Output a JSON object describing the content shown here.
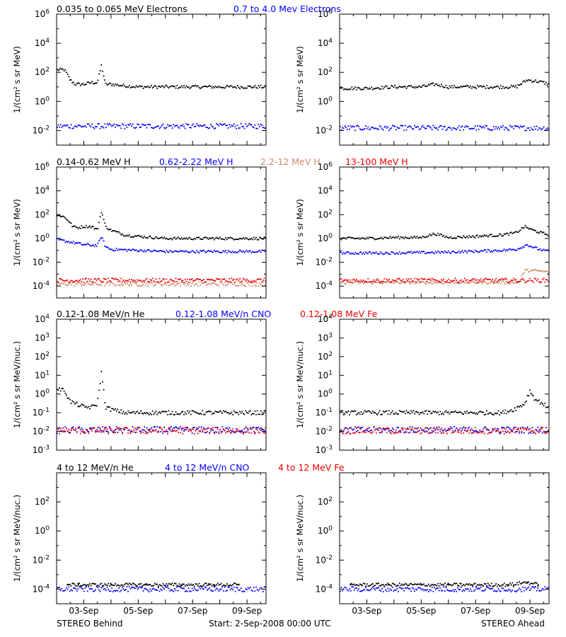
{
  "colors": {
    "black": "#000000",
    "blue": "#0000ff",
    "tan": "#d08a6c",
    "red": "#ee0000"
  },
  "headers": [
    [
      {
        "text": "0.035 to 0.065 MeV Electrons",
        "color": "black"
      },
      {
        "text": "0.7 to 4.0 Mev Electrons",
        "color": "blue"
      }
    ],
    [
      {
        "text": "0.14-0.62 MeV H",
        "color": "black"
      },
      {
        "text": "0.62-2.22 MeV H",
        "color": "blue"
      },
      {
        "text": "2.2-12 MeV H",
        "color": "tan"
      },
      {
        "text": "13-100 MeV H",
        "color": "red"
      }
    ],
    [
      {
        "text": "0.12-1.08 MeV/n He",
        "color": "black"
      },
      {
        "text": "0.12-1.08 MeV/n CNO",
        "color": "blue"
      },
      {
        "text": "0.12-1.08 MeV Fe",
        "color": "red"
      }
    ],
    [
      {
        "text": "4 to 12 MeV/n He",
        "color": "black"
      },
      {
        "text": "4 to 12 MeV/n CNO",
        "color": "blue"
      },
      {
        "text": "4 to 12 MeV Fe",
        "color": "red"
      }
    ]
  ],
  "footer": {
    "left": "STEREO Behind",
    "center": "Start:  2-Sep-2008 00:00 UTC",
    "right": "STEREO Ahead"
  },
  "chart_data": [
    {
      "type": "scatter",
      "panel": "row1-left",
      "spacecraft": "STEREO Behind",
      "ylabel": "1/(cm² s sr MeV)",
      "y_scale": "log",
      "ylim": [
        0.001,
        1000000
      ],
      "ylim_exp": [
        -3,
        6
      ],
      "yticks_exp": [
        -2,
        0,
        2,
        4,
        6
      ],
      "xlim": [
        0,
        7.7
      ],
      "xticks": [
        1,
        3,
        5,
        7
      ],
      "xticklabels": [
        "03-Sep",
        "05-Sep",
        "07-Sep",
        "09-Sep"
      ],
      "series": [
        {
          "name": "0.035 to 0.065 MeV Electrons",
          "color": "black",
          "x": [
            0,
            0.3,
            0.5,
            0.7,
            1.0,
            1.3,
            1.5,
            1.65,
            1.8,
            2.0,
            2.5,
            3.0,
            4.0,
            5.0,
            6.0,
            7.0,
            7.7
          ],
          "y": [
            150,
            150,
            30,
            15,
            15,
            20,
            20,
            300,
            15,
            15,
            12,
            10,
            10,
            10,
            10,
            10,
            10
          ]
        },
        {
          "name": "0.7 to 4.0 Mev Electrons",
          "color": "blue",
          "x": [
            0,
            7.7
          ],
          "y": [
            0.02,
            0.02
          ]
        }
      ]
    },
    {
      "type": "scatter",
      "panel": "row1-right",
      "spacecraft": "STEREO Ahead",
      "ylabel": "1/(cm² s sr MeV)",
      "y_scale": "log",
      "ylim": [
        0.001,
        1000000
      ],
      "ylim_exp": [
        -3,
        6
      ],
      "yticks_exp": [
        -2,
        0,
        2,
        4,
        6
      ],
      "xlim": [
        0,
        7.7
      ],
      "xticks": [
        1,
        3,
        5,
        7
      ],
      "xticklabels": [
        "03-Sep",
        "05-Sep",
        "07-Sep",
        "09-Sep"
      ],
      "series": [
        {
          "name": "0.035 to 0.065 MeV Electrons",
          "color": "black",
          "x": [
            0,
            1.0,
            2.0,
            3.0,
            3.5,
            4.0,
            5.0,
            6.0,
            6.5,
            6.9,
            7.2,
            7.5,
            7.7
          ],
          "y": [
            8,
            8,
            10,
            10,
            15,
            10,
            10,
            10,
            10,
            30,
            25,
            20,
            15
          ]
        },
        {
          "name": "0.7 to 4.0 Mev Electrons",
          "color": "blue",
          "x": [
            0,
            7.7
          ],
          "y": [
            0.015,
            0.015
          ]
        }
      ]
    },
    {
      "type": "scatter",
      "panel": "row2-left",
      "spacecraft": "STEREO Behind",
      "ylabel": "1/(cm² s sr MeV)",
      "y_scale": "log",
      "ylim": [
        1e-05,
        1000000
      ],
      "ylim_exp": [
        -5,
        6
      ],
      "yticks_exp": [
        -4,
        -2,
        0,
        2,
        4,
        6
      ],
      "xlim": [
        0,
        7.7
      ],
      "xticks": [
        1,
        3,
        5,
        7
      ],
      "xticklabels": [
        "03-Sep",
        "05-Sep",
        "07-Sep",
        "09-Sep"
      ],
      "series": [
        {
          "name": "0.14-0.62 MeV H",
          "color": "black",
          "x": [
            0,
            0.2,
            0.4,
            0.6,
            0.8,
            1.0,
            1.3,
            1.5,
            1.65,
            1.8,
            2.0,
            2.5,
            3.0,
            4.0,
            5.0,
            6.0,
            7.0,
            7.7
          ],
          "y": [
            80,
            80,
            40,
            10,
            8,
            10,
            10,
            5,
            200,
            10,
            5,
            2,
            1.5,
            1,
            1,
            1,
            1,
            1
          ]
        },
        {
          "name": "0.62-2.22 MeV H",
          "color": "blue",
          "x": [
            0,
            0.5,
            1.0,
            1.5,
            1.65,
            1.8,
            2.0,
            3.0,
            4.0,
            5.0,
            6.0,
            7.0,
            7.7
          ],
          "y": [
            0.8,
            0.5,
            0.3,
            0.25,
            1.5,
            0.2,
            0.12,
            0.1,
            0.08,
            0.08,
            0.08,
            0.08,
            0.08
          ]
        },
        {
          "name": "2.2-12 MeV H",
          "color": "tan",
          "x": [
            0,
            7.7
          ],
          "y": [
            0.00015,
            0.00015
          ]
        },
        {
          "name": "13-100 MeV H",
          "color": "red",
          "x": [
            0,
            7.7
          ],
          "y": [
            0.0003,
            0.0003
          ]
        }
      ]
    },
    {
      "type": "scatter",
      "panel": "row2-right",
      "spacecraft": "STEREO Ahead",
      "ylabel": "1/(cm² s sr MeV)",
      "y_scale": "log",
      "ylim": [
        1e-05,
        1000000
      ],
      "ylim_exp": [
        -5,
        6
      ],
      "yticks_exp": [
        -4,
        -2,
        0,
        2,
        4,
        6
      ],
      "xlim": [
        0,
        7.7
      ],
      "xticks": [
        1,
        3,
        5,
        7
      ],
      "xticklabels": [
        "03-Sep",
        "05-Sep",
        "07-Sep",
        "09-Sep"
      ],
      "series": [
        {
          "name": "0.14-0.62 MeV H",
          "color": "black",
          "x": [
            0,
            1.0,
            2.0,
            3.0,
            3.5,
            4.0,
            5.0,
            6.0,
            6.5,
            6.8,
            7.1,
            7.4,
            7.7
          ],
          "y": [
            1,
            1,
            1.2,
            1.2,
            2.5,
            1.2,
            1.5,
            2,
            3,
            10,
            5,
            3,
            2
          ]
        },
        {
          "name": "0.62-2.22 MeV H",
          "color": "blue",
          "x": [
            0,
            2.0,
            4.0,
            6.0,
            6.5,
            6.9,
            7.2,
            7.5,
            7.7
          ],
          "y": [
            0.06,
            0.06,
            0.07,
            0.1,
            0.12,
            0.3,
            0.15,
            0.1,
            0.08
          ]
        },
        {
          "name": "2.2-12 MeV H",
          "color": "tan",
          "x": [
            0,
            6.6,
            6.8,
            7.2,
            7.7
          ],
          "y": [
            0.0002,
            0.0002,
            0.002,
            0.002,
            0.0015
          ]
        },
        {
          "name": "13-100 MeV H",
          "color": "red",
          "x": [
            0,
            7.7
          ],
          "y": [
            0.0003,
            0.0003
          ]
        }
      ]
    },
    {
      "type": "scatter",
      "panel": "row3-left",
      "spacecraft": "STEREO Behind",
      "ylabel": "1/(cm² s sr MeV/nuc.)",
      "y_scale": "log",
      "ylim": [
        0.001,
        10000
      ],
      "ylim_exp": [
        -3,
        4
      ],
      "yticks_exp": [
        -3,
        -2,
        -1,
        0,
        1,
        2,
        3,
        4
      ],
      "xlim": [
        0,
        7.7
      ],
      "xticks": [
        1,
        3,
        5,
        7
      ],
      "xticklabels": [
        "03-Sep",
        "05-Sep",
        "07-Sep",
        "09-Sep"
      ],
      "series": [
        {
          "name": "0.12-1.08 MeV/n He",
          "color": "black",
          "x": [
            0,
            0.3,
            0.5,
            0.7,
            1.0,
            1.3,
            1.5,
            1.65,
            1.8,
            2.0,
            2.5,
            3.0,
            4.0,
            5.0,
            6.0,
            7.0,
            7.7
          ],
          "y": [
            2,
            1.5,
            0.4,
            0.3,
            0.2,
            0.2,
            0.3,
            15,
            0.2,
            0.15,
            0.1,
            0.1,
            0.1,
            0.1,
            0.1,
            0.1,
            0.1
          ]
        },
        {
          "name": "0.12-1.08 MeV/n CNO",
          "color": "blue",
          "x": [
            0,
            7.7
          ],
          "y": [
            0.012,
            0.012
          ]
        },
        {
          "name": "0.12-1.08 MeV Fe",
          "color": "red",
          "x": [
            0,
            7.7
          ],
          "y": [
            0.011,
            0.011
          ]
        }
      ]
    },
    {
      "type": "scatter",
      "panel": "row3-right",
      "spacecraft": "STEREO Ahead",
      "ylabel": "1/(cm² s sr MeV/nuc.)",
      "y_scale": "log",
      "ylim": [
        0.001,
        10000
      ],
      "ylim_exp": [
        -3,
        4
      ],
      "yticks_exp": [
        -3,
        -2,
        -1,
        0,
        1,
        2,
        3,
        4
      ],
      "xlim": [
        0,
        7.7
      ],
      "xticks": [
        1,
        3,
        5,
        7
      ],
      "xticklabels": [
        "03-Sep",
        "05-Sep",
        "07-Sep",
        "09-Sep"
      ],
      "series": [
        {
          "name": "0.12-1.08 MeV/n He",
          "color": "black",
          "x": [
            0,
            2.0,
            3.0,
            4.0,
            5.0,
            6.0,
            6.4,
            6.8,
            7.0,
            7.2,
            7.5,
            7.7
          ],
          "y": [
            0.1,
            0.1,
            0.1,
            0.1,
            0.1,
            0.1,
            0.15,
            0.3,
            1.5,
            0.5,
            0.3,
            0.15
          ]
        },
        {
          "name": "0.12-1.08 MeV/n CNO",
          "color": "blue",
          "x": [
            0,
            7.7
          ],
          "y": [
            0.012,
            0.012
          ]
        },
        {
          "name": "0.12-1.08 MeV Fe",
          "color": "red",
          "x": [
            0,
            7.7
          ],
          "y": [
            0.011,
            0.011
          ]
        }
      ]
    },
    {
      "type": "scatter",
      "panel": "row4-left",
      "spacecraft": "STEREO Behind",
      "ylabel": "1/(cm² s sr MeV/nuc.)",
      "y_scale": "log",
      "ylim": [
        1e-05,
        10000
      ],
      "ylim_exp": [
        -5,
        4
      ],
      "yticks_exp": [
        -4,
        -2,
        0,
        2
      ],
      "xlim": [
        0,
        7.7
      ],
      "xticks": [
        1,
        3,
        5,
        7
      ],
      "xticklabels": [
        "03-Sep",
        "05-Sep",
        "07-Sep",
        "09-Sep"
      ],
      "series": [
        {
          "name": "4 to 12 MeV/n He",
          "color": "black",
          "x": [
            0.4,
            0.8,
            2.0,
            3.3,
            4.6,
            5.6,
            5.8,
            6.7
          ],
          "y": [
            0.0002,
            0.0002,
            0.0002,
            0.0002,
            0.0002,
            0.0002,
            0.0002,
            0.0002
          ]
        },
        {
          "name": "4 to 12 MeV/n CNO",
          "color": "blue",
          "x": [
            0,
            7.7
          ],
          "y": [
            0.0001,
            0.0001
          ]
        }
      ]
    },
    {
      "type": "scatter",
      "panel": "row4-right",
      "spacecraft": "STEREO Ahead",
      "ylabel": "1/(cm² s sr MeV/nuc.)",
      "y_scale": "log",
      "ylim": [
        1e-05,
        10000
      ],
      "ylim_exp": [
        -5,
        4
      ],
      "yticks_exp": [
        -4,
        -2,
        0,
        2
      ],
      "xlim": [
        0,
        7.7
      ],
      "xticks": [
        1,
        3,
        5,
        7
      ],
      "xticklabels": [
        "03-Sep",
        "05-Sep",
        "07-Sep",
        "09-Sep"
      ],
      "series": [
        {
          "name": "4 to 12 MeV/n He",
          "color": "black",
          "x": [
            0.4,
            0.8,
            1.8,
            3.0,
            4.0,
            6.2,
            6.9,
            7.3
          ],
          "y": [
            0.0002,
            0.0002,
            0.0002,
            0.0002,
            0.0002,
            0.0002,
            0.0003,
            0.0002
          ]
        },
        {
          "name": "4 to 12 MeV/n CNO",
          "color": "blue",
          "x": [
            0,
            7.7
          ],
          "y": [
            0.0001,
            0.0001
          ]
        }
      ]
    }
  ]
}
